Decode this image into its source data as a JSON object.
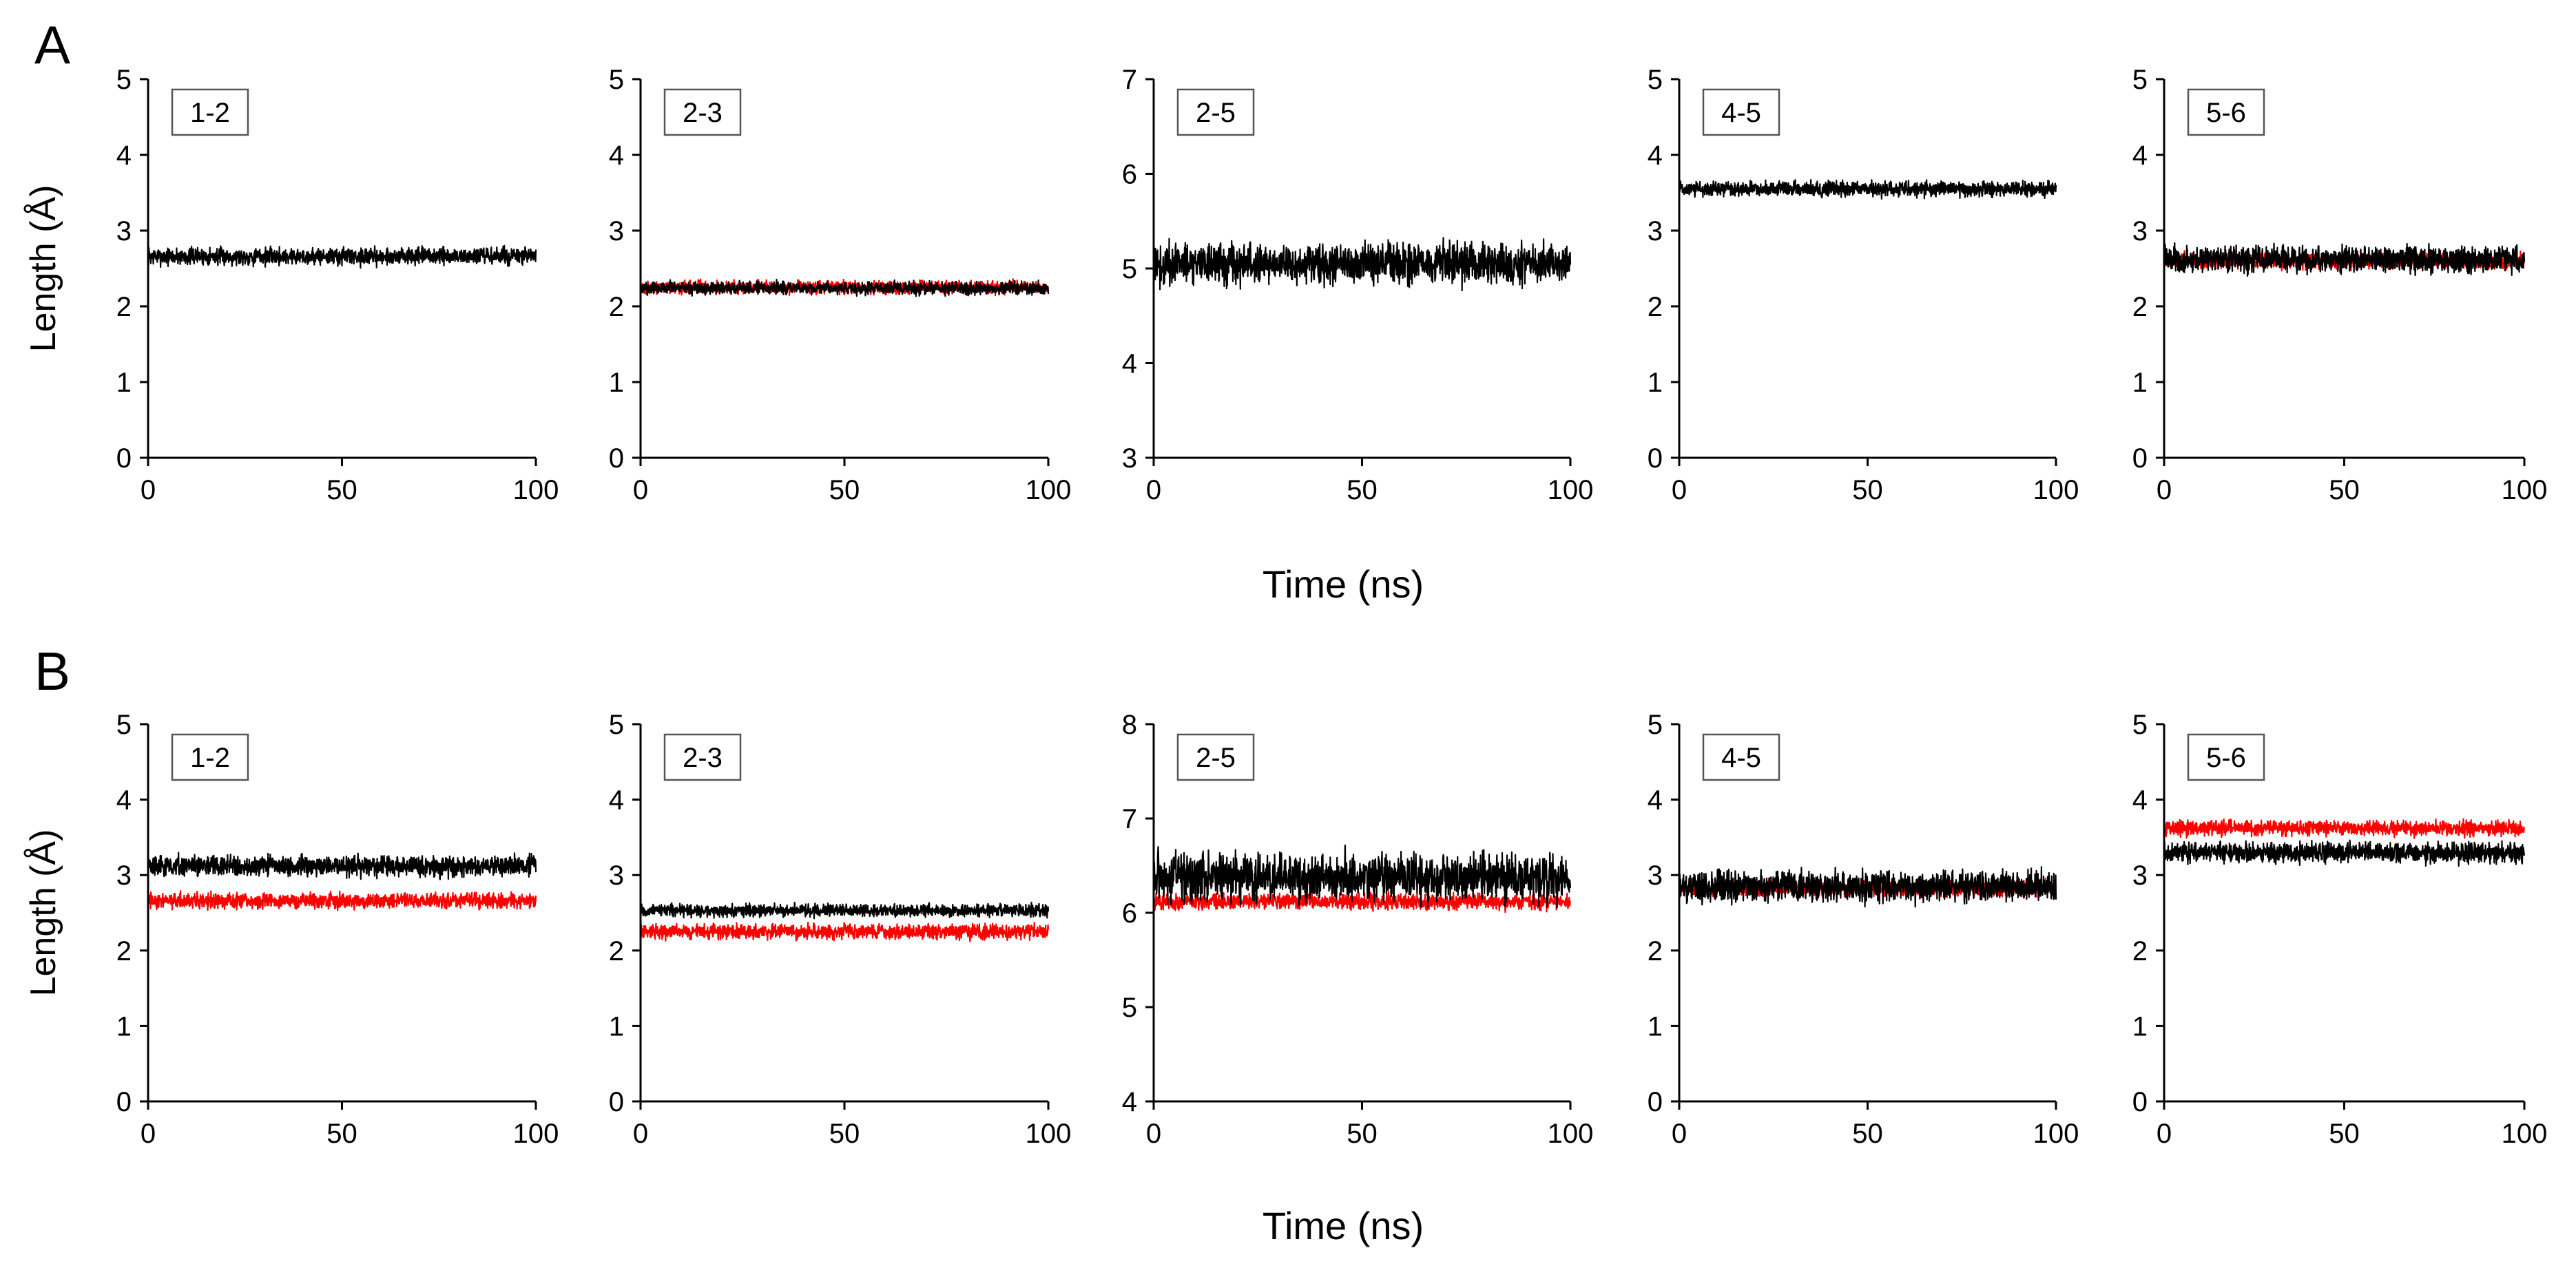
{
  "figure": {
    "x_axis_label": "Time (ns)",
    "y_axis_label": "Length (Å)",
    "colors": {
      "black_series": "#000000",
      "red_series": "#ff0000",
      "axis": "#000000"
    }
  },
  "chart_data": [
    {
      "panel": "A",
      "label": "1-2",
      "type": "line",
      "xlim": [
        0,
        100
      ],
      "ylim": [
        0,
        5
      ],
      "xticks": [
        0,
        50,
        100
      ],
      "yticks": [
        0,
        1,
        2,
        3,
        4,
        5
      ],
      "xlabel": "Time (ns)",
      "ylabel": "Length (Å)",
      "series": [
        {
          "name": "black",
          "color": "#000000",
          "mean": 2.66,
          "noise": 0.07
        }
      ]
    },
    {
      "panel": "A",
      "label": "2-3",
      "type": "line",
      "xlim": [
        0,
        100
      ],
      "ylim": [
        0,
        5
      ],
      "xticks": [
        0,
        50,
        100
      ],
      "yticks": [
        0,
        1,
        2,
        3,
        4,
        5
      ],
      "xlabel": "Time (ns)",
      "ylabel": "",
      "series": [
        {
          "name": "red",
          "color": "#ff0000",
          "mean": 2.25,
          "noise": 0.05
        },
        {
          "name": "black",
          "color": "#000000",
          "mean": 2.24,
          "noise": 0.05
        }
      ]
    },
    {
      "panel": "A",
      "label": "2-5",
      "type": "line",
      "xlim": [
        0,
        100
      ],
      "ylim": [
        3,
        7
      ],
      "xticks": [
        0,
        50,
        100
      ],
      "yticks": [
        3,
        4,
        5,
        6,
        7
      ],
      "xlabel": "Time (ns)",
      "ylabel": "",
      "series": [
        {
          "name": "black",
          "color": "#000000",
          "mean": 5.05,
          "noise": 0.13
        }
      ]
    },
    {
      "panel": "A",
      "label": "4-5",
      "type": "line",
      "xlim": [
        0,
        100
      ],
      "ylim": [
        0,
        5
      ],
      "xticks": [
        0,
        50,
        100
      ],
      "yticks": [
        0,
        1,
        2,
        3,
        4,
        5
      ],
      "xlabel": "Time (ns)",
      "ylabel": "",
      "series": [
        {
          "name": "black",
          "color": "#000000",
          "mean": 3.55,
          "noise": 0.06
        }
      ]
    },
    {
      "panel": "A",
      "label": "5-6",
      "type": "line",
      "xlim": [
        0,
        100
      ],
      "ylim": [
        0,
        5
      ],
      "xticks": [
        0,
        50,
        100
      ],
      "yticks": [
        0,
        1,
        2,
        3,
        4,
        5
      ],
      "xlabel": "Time (ns)",
      "ylabel": "",
      "series": [
        {
          "name": "red",
          "color": "#ff0000",
          "mean": 2.6,
          "noise": 0.06
        },
        {
          "name": "black",
          "color": "#000000",
          "mean": 2.62,
          "noise": 0.1
        }
      ]
    },
    {
      "panel": "B",
      "label": "1-2",
      "type": "line",
      "xlim": [
        0,
        100
      ],
      "ylim": [
        0,
        5
      ],
      "xticks": [
        0,
        50,
        100
      ],
      "yticks": [
        0,
        1,
        2,
        3,
        4,
        5
      ],
      "xlabel": "Time (ns)",
      "ylabel": "Length (Å)",
      "series": [
        {
          "name": "red",
          "color": "#ff0000",
          "mean": 2.66,
          "noise": 0.06
        },
        {
          "name": "black",
          "color": "#000000",
          "mean": 3.12,
          "noise": 0.08
        }
      ]
    },
    {
      "panel": "B",
      "label": "2-3",
      "type": "line",
      "xlim": [
        0,
        100
      ],
      "ylim": [
        0,
        5
      ],
      "xticks": [
        0,
        50,
        100
      ],
      "yticks": [
        0,
        1,
        2,
        3,
        4,
        5
      ],
      "xlabel": "Time (ns)",
      "ylabel": "",
      "series": [
        {
          "name": "red",
          "color": "#ff0000",
          "mean": 2.25,
          "noise": 0.06
        },
        {
          "name": "black",
          "color": "#000000",
          "mean": 2.53,
          "noise": 0.05
        }
      ]
    },
    {
      "panel": "B",
      "label": "2-5",
      "type": "line",
      "xlim": [
        0,
        100
      ],
      "ylim": [
        4,
        8
      ],
      "xticks": [
        0,
        50,
        100
      ],
      "yticks": [
        4,
        5,
        6,
        7,
        8
      ],
      "xlabel": "Time (ns)",
      "ylabel": "",
      "series": [
        {
          "name": "red",
          "color": "#ff0000",
          "mean": 6.12,
          "noise": 0.05
        },
        {
          "name": "black",
          "color": "#000000",
          "mean": 6.38,
          "noise": 0.15
        }
      ]
    },
    {
      "panel": "B",
      "label": "4-5",
      "type": "line",
      "xlim": [
        0,
        100
      ],
      "ylim": [
        0,
        5
      ],
      "xticks": [
        0,
        50,
        100
      ],
      "yticks": [
        0,
        1,
        2,
        3,
        4,
        5
      ],
      "xlabel": "Time (ns)",
      "ylabel": "",
      "series": [
        {
          "name": "red",
          "color": "#ff0000",
          "mean": 2.82,
          "noise": 0.06
        },
        {
          "name": "black",
          "color": "#000000",
          "mean": 2.85,
          "noise": 0.12
        }
      ]
    },
    {
      "panel": "B",
      "label": "5-6",
      "type": "line",
      "xlim": [
        0,
        100
      ],
      "ylim": [
        0,
        5
      ],
      "xticks": [
        0,
        50,
        100
      ],
      "yticks": [
        0,
        1,
        2,
        3,
        4,
        5
      ],
      "xlabel": "Time (ns)",
      "ylabel": "",
      "series": [
        {
          "name": "red",
          "color": "#ff0000",
          "mean": 3.62,
          "noise": 0.06
        },
        {
          "name": "black",
          "color": "#000000",
          "mean": 3.3,
          "noise": 0.08
        }
      ]
    }
  ]
}
